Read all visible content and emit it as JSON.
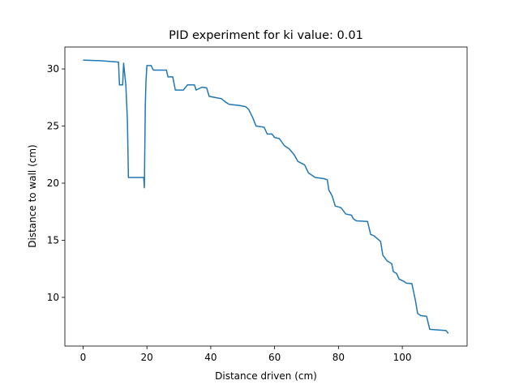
{
  "chart_data": {
    "type": "line",
    "title": "PID experiment for ki value: 0.01",
    "x_label": "Distance driven (cm)",
    "y_label": "Distance to wall (cm)",
    "xlim": [
      -5.7,
      120.3
    ],
    "ylim": [
      5.74,
      31.92
    ],
    "xticks": [
      0,
      20,
      40,
      60,
      80,
      100
    ],
    "yticks": [
      10,
      15,
      20,
      25,
      30
    ],
    "grid": false,
    "series": [
      {
        "color": "#1f77b4",
        "x": [
          0,
          6.6,
          11.1,
          11.4,
          12.4,
          12.7,
          13.4,
          13.9,
          14.2,
          19.0,
          19.2,
          19.5,
          19.7,
          20.0,
          21.3,
          22.0,
          26.1,
          26.6,
          28.1,
          28.9,
          31.4,
          32.7,
          34.9,
          35.4,
          37.2,
          38.7,
          39.5,
          43.3,
          44.6,
          45.8,
          48.9,
          50.9,
          51.9,
          53.2,
          54.2,
          56.7,
          57.7,
          59.2,
          60.0,
          61.5,
          63.0,
          64.6,
          66.1,
          67.3,
          69.4,
          70.6,
          72.7,
          75.4,
          76.5,
          77.0,
          78.0,
          79.0,
          80.8,
          82.3,
          84.1,
          84.6,
          85.6,
          89.1,
          90.1,
          91.1,
          93.2,
          93.9,
          95.2,
          96.7,
          97.2,
          98.2,
          99.0,
          100.5,
          101.3,
          103.0,
          104.1,
          104.8,
          105.8,
          107.6,
          108.6,
          113.7,
          114.4
        ],
        "values": [
          30.78,
          30.7,
          30.6,
          28.6,
          28.6,
          30.5,
          28.6,
          25.4,
          20.5,
          20.5,
          19.6,
          26.8,
          28.9,
          30.3,
          30.3,
          29.9,
          29.9,
          29.3,
          29.3,
          28.15,
          28.15,
          28.6,
          28.6,
          28.15,
          28.4,
          28.35,
          27.6,
          27.4,
          27.1,
          26.9,
          26.8,
          26.7,
          26.45,
          25.7,
          25.0,
          24.9,
          24.3,
          24.3,
          24.0,
          23.9,
          23.3,
          23.0,
          22.5,
          21.9,
          21.6,
          20.9,
          20.5,
          20.4,
          20.3,
          19.4,
          18.9,
          18.0,
          17.85,
          17.3,
          17.2,
          16.9,
          16.7,
          16.65,
          15.5,
          15.4,
          14.9,
          13.7,
          13.2,
          12.95,
          12.25,
          12.1,
          11.6,
          11.4,
          11.25,
          11.2,
          9.75,
          8.6,
          8.4,
          8.35,
          7.2,
          7.1,
          6.85
        ]
      }
    ]
  }
}
